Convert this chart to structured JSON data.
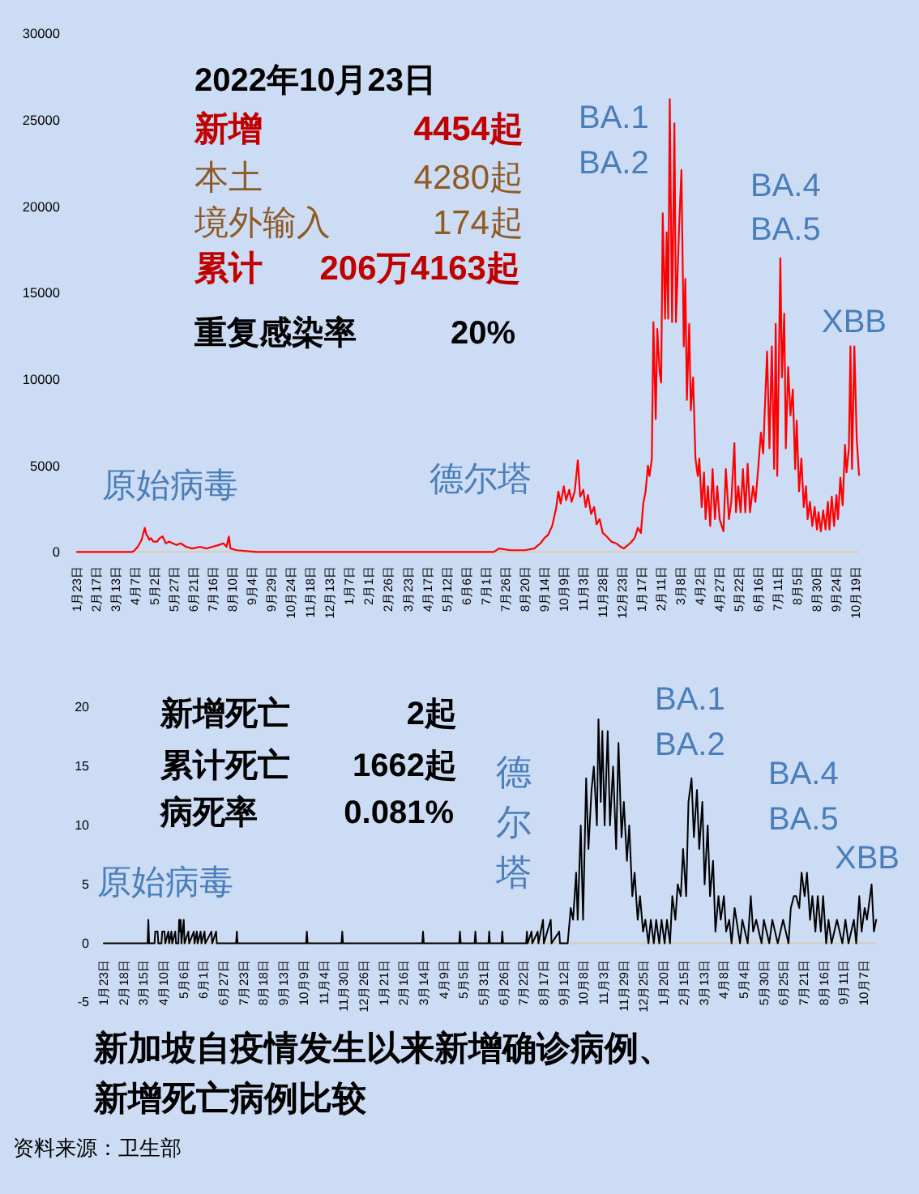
{
  "chart_data": [
    {
      "type": "line",
      "color": "#ff0000",
      "x": [
        "2020-01-23",
        "2020-04-03",
        "2020-04-06",
        "2020-04-10",
        "2020-04-15",
        "2020-04-19",
        "2020-04-21",
        "2020-04-23",
        "2020-04-25",
        "2020-04-27",
        "2020-04-30",
        "2020-05-05",
        "2020-05-08",
        "2020-05-12",
        "2020-05-16",
        "2020-05-20",
        "2020-05-25",
        "2020-05-30",
        "2020-06-04",
        "2020-06-11",
        "2020-06-19",
        "2020-06-29",
        "2020-07-07",
        "2020-07-15",
        "2020-07-23",
        "2020-07-29",
        "2020-08-02",
        "2020-08-05",
        "2020-08-07",
        "2020-08-15",
        "2020-09-09",
        "2021-07-11",
        "2021-07-18",
        "2021-08-01",
        "2021-08-20",
        "2021-09-01",
        "2021-09-09",
        "2021-09-14",
        "2021-09-19",
        "2021-09-24",
        "2021-09-29",
        "2021-10-02",
        "2021-10-05",
        "2021-10-09",
        "2021-10-12",
        "2021-10-16",
        "2021-10-19",
        "2021-10-23",
        "2021-10-27",
        "2021-10-30",
        "2021-11-03",
        "2021-11-06",
        "2021-11-09",
        "2021-11-13",
        "2021-11-17",
        "2021-11-20",
        "2021-11-24",
        "2021-11-28",
        "2021-12-03",
        "2021-12-09",
        "2021-12-15",
        "2021-12-21",
        "2021-12-25",
        "2022-01-02",
        "2022-01-08",
        "2022-01-12",
        "2022-01-16",
        "2022-01-19",
        "2022-01-22",
        "2022-01-25",
        "2022-01-27",
        "2022-01-30",
        "2022-02-01",
        "2022-02-04",
        "2022-02-06",
        "2022-02-09",
        "2022-02-11",
        "2022-02-13",
        "2022-02-16",
        "2022-02-18",
        "2022-02-20",
        "2022-02-22",
        "2022-02-25",
        "2022-02-28",
        "2022-03-02",
        "2022-03-06",
        "2022-03-09",
        "2022-03-12",
        "2022-03-14",
        "2022-03-16",
        "2022-03-19",
        "2022-03-21",
        "2022-03-24",
        "2022-03-27",
        "2022-03-30",
        "2022-04-01",
        "2022-04-04",
        "2022-04-07",
        "2022-04-09",
        "2022-04-12",
        "2022-04-15",
        "2022-04-18",
        "2022-04-21",
        "2022-04-24",
        "2022-04-27",
        "2022-05-02",
        "2022-05-05",
        "2022-05-09",
        "2022-05-12",
        "2022-05-16",
        "2022-05-18",
        "2022-05-21",
        "2022-05-24",
        "2022-05-27",
        "2022-05-30",
        "2022-06-02",
        "2022-06-05",
        "2022-06-09",
        "2022-06-12",
        "2022-06-16",
        "2022-06-19",
        "2022-06-22",
        "2022-06-24",
        "2022-06-27",
        "2022-06-30",
        "2022-07-03",
        "2022-07-06",
        "2022-07-08",
        "2022-07-10",
        "2022-07-14",
        "2022-07-16",
        "2022-07-19",
        "2022-07-21",
        "2022-07-24",
        "2022-07-27",
        "2022-07-30",
        "2022-08-02",
        "2022-08-04",
        "2022-08-07",
        "2022-08-10",
        "2022-08-13",
        "2022-08-16",
        "2022-08-18",
        "2022-08-21",
        "2022-08-24",
        "2022-08-27",
        "2022-08-30",
        "2022-09-01",
        "2022-09-04",
        "2022-09-07",
        "2022-09-10",
        "2022-09-13",
        "2022-09-15",
        "2022-09-18",
        "2022-09-21",
        "2022-09-24",
        "2022-09-26",
        "2022-09-29",
        "2022-10-02",
        "2022-10-05",
        "2022-10-07",
        "2022-10-10",
        "2022-10-12",
        "2022-10-14",
        "2022-10-17",
        "2022-10-20",
        "2022-10-23"
      ],
      "values": [
        0,
        0,
        100,
        300,
        700,
        1400,
        1000,
        900,
        700,
        800,
        600,
        600,
        800,
        900,
        500,
        600,
        500,
        400,
        500,
        300,
        200,
        300,
        200,
        300,
        400,
        500,
        300,
        900,
        200,
        100,
        0,
        0,
        200,
        100,
        100,
        200,
        500,
        800,
        1000,
        1500,
        2500,
        3500,
        2800,
        3800,
        3000,
        3600,
        2900,
        3500,
        5300,
        3200,
        3600,
        2600,
        3300,
        2200,
        2600,
        1600,
        1900,
        1100,
        900,
        600,
        500,
        300,
        200,
        500,
        800,
        1400,
        1100,
        2800,
        3500,
        5000,
        4400,
        5400,
        13300,
        7700,
        12900,
        10400,
        9800,
        19600,
        13500,
        18500,
        13500,
        26200,
        13300,
        24800,
        13300,
        18800,
        22100,
        11900,
        15800,
        8800,
        13200,
        8200,
        10100,
        5400,
        4400,
        5400,
        2600,
        4600,
        1900,
        3800,
        1500,
        4800,
        1900,
        3800,
        1900,
        1200,
        4800,
        1900,
        2900,
        6300,
        2300,
        3800,
        2300,
        4800,
        2300,
        5100,
        2300,
        3800,
        2900,
        5100,
        6900,
        5700,
        8200,
        11600,
        6000,
        11900,
        4800,
        13200,
        4400,
        17000,
        10100,
        13800,
        6000,
        10700,
        7900,
        9400,
        4800,
        7600,
        3500,
        5400,
        2600,
        3800,
        1900,
        2900,
        1500,
        2600,
        1300,
        2300,
        1200,
        2400,
        1300,
        2900,
        1300,
        3200,
        1500,
        3300,
        1900,
        4300,
        2700,
        6200,
        4600,
        6000,
        11900,
        4800,
        11900,
        6600,
        4454
      ],
      "xlim": [
        "2020-01-23",
        "2022-10-23"
      ],
      "ylim": [
        0,
        30000
      ],
      "yticks": [
        0,
        5000,
        10000,
        15000,
        20000,
        25000,
        30000
      ],
      "xticks": [
        {
          "value": "2020-01-23",
          "label": "1月23日"
        },
        {
          "value": "2020-02-17",
          "label": "2月17日"
        },
        {
          "value": "2020-03-13",
          "label": "3月13日"
        },
        {
          "value": "2020-04-07",
          "label": "4月7日"
        },
        {
          "value": "2020-05-02",
          "label": "5月2日"
        },
        {
          "value": "2020-05-27",
          "label": "5月27日"
        },
        {
          "value": "2020-06-21",
          "label": "6月21日"
        },
        {
          "value": "2020-07-16",
          "label": "7月16日"
        },
        {
          "value": "2020-08-10",
          "label": "8月10日"
        },
        {
          "value": "2020-09-04",
          "label": "9月4日"
        },
        {
          "value": "2020-09-29",
          "label": "9月29日"
        },
        {
          "value": "2020-10-24",
          "label": "10月24日"
        },
        {
          "value": "2020-11-18",
          "label": "11月18日"
        },
        {
          "value": "2020-12-13",
          "label": "12月13日"
        },
        {
          "value": "2021-01-07",
          "label": "1月7日"
        },
        {
          "value": "2021-02-01",
          "label": "2月1日"
        },
        {
          "value": "2021-02-26",
          "label": "2月26日"
        },
        {
          "value": "2021-03-23",
          "label": "3月23日"
        },
        {
          "value": "2021-04-17",
          "label": "4月17日"
        },
        {
          "value": "2021-05-12",
          "label": "5月12日"
        },
        {
          "value": "2021-06-06",
          "label": "6月6日"
        },
        {
          "value": "2021-07-01",
          "label": "7月1日"
        },
        {
          "value": "2021-07-26",
          "label": "7月26日"
        },
        {
          "value": "2021-08-20",
          "label": "8月20日"
        },
        {
          "value": "2021-09-14",
          "label": "9月14日"
        },
        {
          "value": "2021-10-09",
          "label": "10月9日"
        },
        {
          "value": "2021-11-03",
          "label": "11月3日"
        },
        {
          "value": "2021-11-28",
          "label": "11月28日"
        },
        {
          "value": "2021-12-23",
          "label": "12月23日"
        },
        {
          "value": "2022-01-17",
          "label": "1月17日"
        },
        {
          "value": "2022-02-11",
          "label": "2月11日"
        },
        {
          "value": "2022-03-08",
          "label": "3月8日"
        },
        {
          "value": "2022-04-02",
          "label": "4月2日"
        },
        {
          "value": "2022-04-27",
          "label": "4月27日"
        },
        {
          "value": "2022-05-22",
          "label": "5月22日"
        },
        {
          "value": "2022-06-16",
          "label": "6月16日"
        },
        {
          "value": "2022-07-11",
          "label": "7月11日"
        },
        {
          "value": "2022-08-05",
          "label": "8月5日"
        },
        {
          "value": "2022-08-30",
          "label": "8月30日"
        },
        {
          "value": "2022-09-24",
          "label": "9月24日"
        },
        {
          "value": "2022-10-19",
          "label": "10月19日"
        }
      ],
      "annotations": [
        "2022年10月23日",
        "新增",
        "4454起",
        "本土",
        "4280起",
        "境外输入",
        "174起",
        "累计",
        "206万4163起",
        "重复感染率",
        "20%",
        "原始病毒",
        "德尔塔",
        "BA.1 BA.2",
        "BA.4 BA.5",
        "XBB"
      ]
    },
    {
      "type": "line",
      "color": "#000000",
      "title": "新加坡自疫情发生以来新增确诊病例、新增死亡病例比较",
      "x": [
        "2020-01-23",
        "2020-03-20",
        "2020-03-21",
        "2020-03-22",
        "2020-03-29",
        "2020-03-30",
        "2020-04-02",
        "2020-04-03",
        "2020-04-07",
        "2020-04-08",
        "2020-04-11",
        "2020-04-12",
        "2020-04-16",
        "2020-04-17",
        "2020-04-20",
        "2020-04-21",
        "2020-04-25",
        "2020-04-26",
        "2020-04-29",
        "2020-04-30",
        "2020-05-01",
        "2020-05-02",
        "2020-05-03",
        "2020-05-06",
        "2020-05-07",
        "2020-05-12",
        "2020-05-13",
        "2020-05-19",
        "2020-05-20",
        "2020-05-23",
        "2020-05-24",
        "2020-05-28",
        "2020-05-29",
        "2020-06-02",
        "2020-06-03",
        "2020-06-11",
        "2020-06-12",
        "2020-06-17",
        "2020-06-18",
        "2020-07-13",
        "2020-07-14",
        "2020-07-15",
        "2020-10-12",
        "2020-10-13",
        "2020-10-14",
        "2020-11-27",
        "2020-11-28",
        "2020-11-29",
        "2021-03-12",
        "2021-03-13",
        "2021-03-14",
        "2021-04-29",
        "2021-04-30",
        "2021-05-01",
        "2021-05-19",
        "2021-05-20",
        "2021-05-21",
        "2021-06-06",
        "2021-06-07",
        "2021-06-08",
        "2021-06-23",
        "2021-06-24",
        "2021-06-25",
        "2021-07-25",
        "2021-07-26",
        "2021-07-27",
        "2021-08-01",
        "2021-08-02",
        "2021-08-09",
        "2021-08-10",
        "2021-08-16",
        "2021-08-17",
        "2021-08-26",
        "2021-08-27",
        "2021-09-06",
        "2021-09-07",
        "2021-09-17",
        "2021-09-21",
        "2021-09-24",
        "2021-09-28",
        "2021-09-30",
        "2021-10-04",
        "2021-10-07",
        "2021-10-11",
        "2021-10-14",
        "2021-10-18",
        "2021-10-21",
        "2021-10-25",
        "2021-10-27",
        "2021-10-30",
        "2021-11-01",
        "2021-11-04",
        "2021-11-08",
        "2021-11-11",
        "2021-11-15",
        "2021-11-19",
        "2021-11-22",
        "2021-11-26",
        "2021-11-29",
        "2021-12-03",
        "2021-12-06",
        "2021-12-10",
        "2021-12-13",
        "2021-12-17",
        "2021-12-20",
        "2021-12-24",
        "2021-12-27",
        "2021-12-31",
        "2022-01-03",
        "2022-01-07",
        "2022-01-10",
        "2022-01-14",
        "2022-01-17",
        "2022-01-21",
        "2022-01-24",
        "2022-01-28",
        "2022-01-31",
        "2022-02-04",
        "2022-02-07",
        "2022-02-11",
        "2022-02-14",
        "2022-02-18",
        "2022-02-21",
        "2022-02-25",
        "2022-02-28",
        "2022-03-04",
        "2022-03-07",
        "2022-03-11",
        "2022-03-14",
        "2022-03-18",
        "2022-03-21",
        "2022-03-25",
        "2022-03-28",
        "2022-04-01",
        "2022-04-04",
        "2022-04-08",
        "2022-04-11",
        "2022-04-15",
        "2022-04-18",
        "2022-04-22",
        "2022-04-29",
        "2022-05-02",
        "2022-05-09",
        "2022-05-13",
        "2022-05-16",
        "2022-05-20",
        "2022-05-27",
        "2022-05-30",
        "2022-06-06",
        "2022-06-10",
        "2022-06-17",
        "2022-06-24",
        "2022-07-01",
        "2022-07-04",
        "2022-07-08",
        "2022-07-11",
        "2022-07-15",
        "2022-07-18",
        "2022-07-22",
        "2022-07-25",
        "2022-07-29",
        "2022-08-01",
        "2022-08-05",
        "2022-08-08",
        "2022-08-12",
        "2022-08-15",
        "2022-08-19",
        "2022-08-22",
        "2022-08-26",
        "2022-09-02",
        "2022-09-09",
        "2022-09-13",
        "2022-09-17",
        "2022-09-24",
        "2022-09-27",
        "2022-10-01",
        "2022-10-04",
        "2022-10-08",
        "2022-10-11",
        "2022-10-15",
        "2022-10-17",
        "2022-10-20",
        "2022-10-23"
      ],
      "values": [
        0,
        0,
        2,
        0,
        0,
        1,
        1,
        0,
        0,
        1,
        1,
        0,
        1,
        0,
        1,
        0,
        1,
        0,
        0,
        2,
        1,
        2,
        0,
        2,
        0,
        1,
        0,
        1,
        0,
        1,
        0,
        1,
        0,
        1,
        0,
        1,
        0,
        1,
        0,
        0,
        1,
        0,
        0,
        1,
        0,
        0,
        1,
        0,
        0,
        1,
        0,
        0,
        1,
        0,
        0,
        1,
        0,
        0,
        1,
        0,
        0,
        1,
        0,
        0,
        1,
        0,
        1,
        0,
        1,
        0,
        2,
        0,
        2,
        0,
        1,
        0,
        0,
        3,
        2,
        6,
        2,
        10,
        2,
        14,
        8,
        13,
        15,
        10,
        19,
        12,
        18,
        10,
        18,
        10,
        15,
        8,
        17,
        9,
        12,
        7,
        10,
        4,
        6,
        2,
        4,
        1,
        2,
        0,
        2,
        0,
        2,
        0,
        2,
        0,
        2,
        0,
        4,
        2,
        5,
        4,
        8,
        4,
        12,
        14,
        9,
        13,
        8,
        12,
        5,
        10,
        4,
        7,
        1,
        4,
        2,
        4,
        1,
        2,
        0,
        3,
        0,
        2,
        0,
        4,
        1,
        2,
        0,
        2,
        0,
        2,
        0,
        2,
        0,
        3,
        4,
        4,
        3,
        6,
        4,
        6,
        2,
        4,
        1,
        4,
        1,
        4,
        0,
        2,
        0,
        2,
        0,
        2,
        0,
        2,
        0,
        4,
        1,
        3,
        2,
        4,
        5,
        1,
        2
      ],
      "xlim": [
        "2020-01-23",
        "2022-10-23"
      ],
      "ylim": [
        -5,
        20
      ],
      "yticks": [
        -5,
        0,
        5,
        10,
        15,
        20
      ],
      "xticks": [
        {
          "value": "2020-01-23",
          "label": "1月23日"
        },
        {
          "value": "2020-02-18",
          "label": "2月18日"
        },
        {
          "value": "2020-03-15",
          "label": "3月15日"
        },
        {
          "value": "2020-04-10",
          "label": "4月10日"
        },
        {
          "value": "2020-05-06",
          "label": "5月6日"
        },
        {
          "value": "2020-06-01",
          "label": "6月1日"
        },
        {
          "value": "2020-06-27",
          "label": "6月27日"
        },
        {
          "value": "2020-07-23",
          "label": "7月23日"
        },
        {
          "value": "2020-08-18",
          "label": "8月18日"
        },
        {
          "value": "2020-09-13",
          "label": "9月13日"
        },
        {
          "value": "2020-10-09",
          "label": "10月9日"
        },
        {
          "value": "2020-11-04",
          "label": "11月4日"
        },
        {
          "value": "2020-11-30",
          "label": "11月30日"
        },
        {
          "value": "2020-12-26",
          "label": "12月26日"
        },
        {
          "value": "2021-01-21",
          "label": "1月21日"
        },
        {
          "value": "2021-02-16",
          "label": "2月16日"
        },
        {
          "value": "2021-03-14",
          "label": "3月14日"
        },
        {
          "value": "2021-04-09",
          "label": "4月9日"
        },
        {
          "value": "2021-05-05",
          "label": "5月5日"
        },
        {
          "value": "2021-05-31",
          "label": "5月31日"
        },
        {
          "value": "2021-06-26",
          "label": "6月26日"
        },
        {
          "value": "2021-07-22",
          "label": "7月22日"
        },
        {
          "value": "2021-08-17",
          "label": "8月17日"
        },
        {
          "value": "2021-09-12",
          "label": "9月12日"
        },
        {
          "value": "2021-10-08",
          "label": "10月8日"
        },
        {
          "value": "2021-11-03",
          "label": "11月3日"
        },
        {
          "value": "2021-11-29",
          "label": "11月29日"
        },
        {
          "value": "2021-12-25",
          "label": "12月25日"
        },
        {
          "value": "2022-01-20",
          "label": "1月20日"
        },
        {
          "value": "2022-02-15",
          "label": "2月15日"
        },
        {
          "value": "2022-03-13",
          "label": "3月13日"
        },
        {
          "value": "2022-04-08",
          "label": "4月8日"
        },
        {
          "value": "2022-05-04",
          "label": "5月4日"
        },
        {
          "value": "2022-05-30",
          "label": "5月30日"
        },
        {
          "value": "2022-06-25",
          "label": "6月25日"
        },
        {
          "value": "2022-07-21",
          "label": "7月21日"
        },
        {
          "value": "2022-08-16",
          "label": "8月16日"
        },
        {
          "value": "2022-09-11",
          "label": "9月11日"
        },
        {
          "value": "2022-10-07",
          "label": "10月7日"
        }
      ],
      "annotations": [
        "新增死亡",
        "2起",
        "累计死亡",
        "1662起",
        "病死率",
        "0.081%",
        "原始病毒",
        "德尔塔",
        "BA.1 BA.2",
        "BA.4 BA.5",
        "XBB",
        "资料来源：卫生部"
      ]
    }
  ]
}
